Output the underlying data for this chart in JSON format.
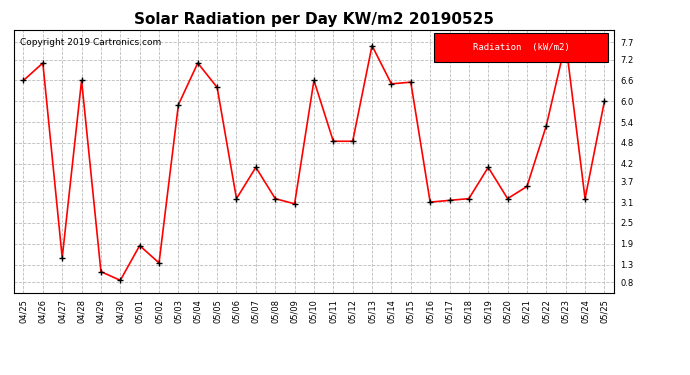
{
  "title": "Solar Radiation per Day KW/m2 20190525",
  "copyright": "Copyright 2019 Cartronics.com",
  "legend_label": "Radiation  (kW/m2)",
  "legend_bg": "#ff0000",
  "legend_text_color": "#ffffff",
  "dates": [
    "04/25",
    "04/26",
    "04/27",
    "04/28",
    "04/29",
    "04/30",
    "05/01",
    "05/02",
    "05/03",
    "05/04",
    "05/05",
    "05/06",
    "05/07",
    "05/08",
    "05/09",
    "05/10",
    "05/11",
    "05/12",
    "05/13",
    "05/14",
    "05/15",
    "05/16",
    "05/17",
    "05/18",
    "05/19",
    "05/20",
    "05/21",
    "05/22",
    "05/23",
    "05/24",
    "05/25"
  ],
  "values": [
    6.6,
    7.1,
    1.5,
    6.6,
    1.1,
    0.85,
    1.85,
    1.35,
    5.9,
    7.1,
    6.4,
    3.2,
    4.1,
    3.2,
    3.05,
    6.6,
    4.85,
    4.85,
    7.6,
    6.5,
    6.55,
    3.1,
    3.15,
    3.2,
    4.1,
    3.2,
    3.55,
    5.3,
    7.7,
    3.2,
    6.0
  ],
  "line_color": "#ff0000",
  "marker_color": "#000000",
  "marker_style": "+",
  "marker_size": 5,
  "line_width": 1.2,
  "ylim": [
    0.5,
    8.05
  ],
  "yticks": [
    0.8,
    1.3,
    1.9,
    2.5,
    3.1,
    3.7,
    4.2,
    4.8,
    5.4,
    6.0,
    6.6,
    7.2,
    7.7
  ],
  "grid_color": "#bbbbbb",
  "grid_style": "--",
  "bg_color": "#ffffff",
  "plot_bg_color": "#ffffff",
  "title_fontsize": 11,
  "copyright_fontsize": 6.5,
  "tick_fontsize": 6,
  "legend_fontsize": 6.5
}
